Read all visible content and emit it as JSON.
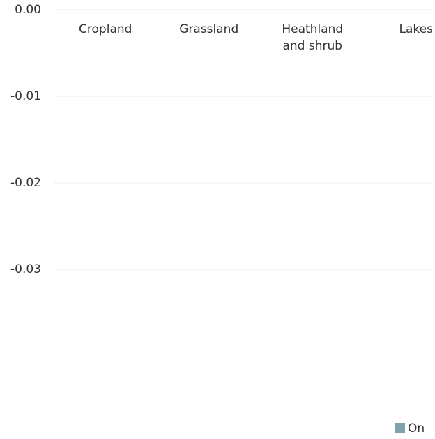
{
  "chart_data": {
    "type": "bar",
    "categories": [
      "Cropland",
      "Grassland",
      "Heathland and shrub",
      "Lakes"
    ],
    "series": [
      {
        "name": "On",
        "color": "#7fa2a8",
        "values": [
          0,
          0,
          0,
          0
        ]
      }
    ],
    "ylim": [
      -0.04,
      0
    ],
    "yticks": [
      {
        "value": 0,
        "label": "0.00"
      },
      -0.01,
      -0.02,
      -0.03
    ],
    "grid": true
  }
}
